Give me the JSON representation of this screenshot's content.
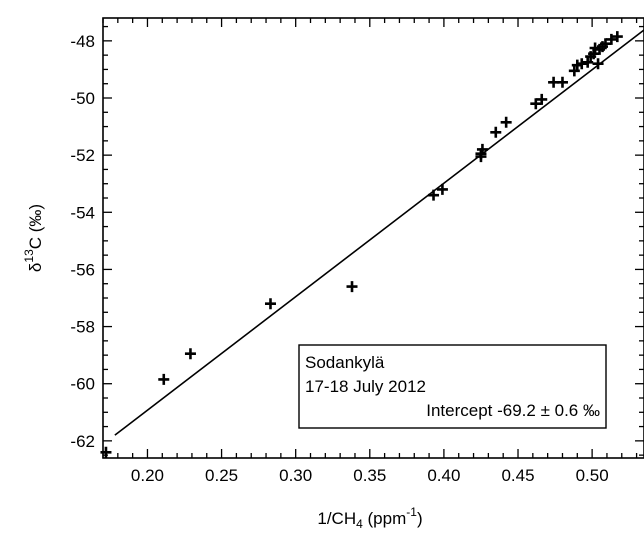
{
  "chart_data": {
    "type": "scatter",
    "xlabel": {
      "main": "1/CH",
      "sub": "4",
      "unit_open": " (ppm",
      "sup": "-1",
      "unit_close": ")"
    },
    "ylabel": {
      "delta": "δ",
      "sup": "13",
      "main": "C (‰)"
    },
    "xlim": [
      0.17,
      0.535
    ],
    "ylim": [
      -62.6,
      -47.2
    ],
    "xticks": [
      0.2,
      0.25,
      0.3,
      0.35,
      0.4,
      0.45,
      0.5
    ],
    "xtick_labels": [
      "0.20",
      "0.25",
      "0.30",
      "0.35",
      "0.40",
      "0.45",
      "0.50"
    ],
    "yticks": [
      -62,
      -60,
      -58,
      -56,
      -54,
      -52,
      -50,
      -48
    ],
    "ytick_labels": [
      "-62",
      "-60",
      "-58",
      "-56",
      "-54",
      "-52",
      "-50",
      "-48"
    ],
    "grid": false,
    "marker": "+",
    "series": [
      {
        "points": [
          [
            0.172,
            -62.4
          ],
          [
            0.211,
            -59.85
          ],
          [
            0.229,
            -58.95
          ],
          [
            0.283,
            -57.2
          ],
          [
            0.338,
            -56.6
          ],
          [
            0.393,
            -53.4
          ],
          [
            0.399,
            -53.2
          ],
          [
            0.425,
            -52.05
          ],
          [
            0.425,
            -51.95
          ],
          [
            0.426,
            -51.8
          ],
          [
            0.435,
            -51.2
          ],
          [
            0.442,
            -50.85
          ],
          [
            0.462,
            -50.2
          ],
          [
            0.466,
            -50.05
          ],
          [
            0.474,
            -49.45
          ],
          [
            0.48,
            -49.45
          ],
          [
            0.488,
            -49.05
          ],
          [
            0.49,
            -48.85
          ],
          [
            0.493,
            -48.8
          ],
          [
            0.497,
            -48.75
          ],
          [
            0.499,
            -48.55
          ],
          [
            0.501,
            -48.45
          ],
          [
            0.502,
            -48.25
          ],
          [
            0.504,
            -48.8
          ],
          [
            0.505,
            -48.3
          ],
          [
            0.507,
            -48.2
          ],
          [
            0.509,
            -48.1
          ],
          [
            0.513,
            -47.95
          ],
          [
            0.517,
            -47.85
          ]
        ]
      }
    ],
    "fit_line": {
      "x": [
        0.178,
        0.535
      ],
      "y": [
        -61.8,
        -47.62
      ]
    },
    "annotation": {
      "lines": [
        "Sodankylä",
        "17-18 July 2012",
        "Intercept -69.2 ± 0.6 ‰"
      ],
      "position": "bottom-right"
    }
  }
}
